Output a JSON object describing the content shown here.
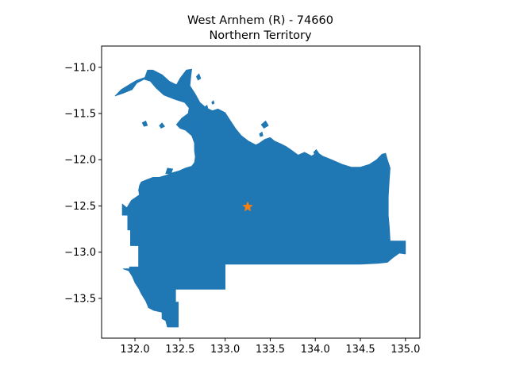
{
  "title_line1": "West Arnhem (R) - 74660",
  "title_line2": "Northern Territory",
  "chart_data": {
    "type": "map",
    "region_name": "West Arnhem (R)",
    "region_code": "74660",
    "state": "Northern Territory",
    "fill_color": "#1f77b4",
    "marker": {
      "shape": "star",
      "color": "#ff7f0e",
      "x": 133.25,
      "y": -12.51
    },
    "xlim": [
      131.63,
      135.16
    ],
    "ylim": [
      -13.93,
      -10.77
    ],
    "xticks": [
      132.0,
      132.5,
      133.0,
      133.5,
      134.0,
      134.5,
      135.0
    ],
    "xtick_labels": [
      "132.0",
      "132.5",
      "133.0",
      "133.5",
      "134.0",
      "134.5",
      "135.0"
    ],
    "yticks": [
      -11.0,
      -11.5,
      -12.0,
      -12.5,
      -13.0,
      -13.5
    ],
    "ytick_labels": [
      "−11.0",
      "−11.5",
      "−12.0",
      "−12.5",
      "−13.0",
      "−13.5"
    ],
    "grid": false,
    "outline": [
      [
        131.86,
        -12.48
      ],
      [
        131.91,
        -12.52
      ],
      [
        131.96,
        -12.44
      ],
      [
        132.05,
        -12.38
      ],
      [
        132.04,
        -12.33
      ],
      [
        132.05,
        -12.28
      ],
      [
        132.07,
        -12.24
      ],
      [
        132.12,
        -12.22
      ],
      [
        132.2,
        -12.19
      ],
      [
        132.27,
        -12.19
      ],
      [
        132.34,
        -12.17
      ],
      [
        132.42,
        -12.14
      ],
      [
        132.49,
        -12.12
      ],
      [
        132.56,
        -12.09
      ],
      [
        132.63,
        -12.07
      ],
      [
        132.66,
        -12.03
      ],
      [
        132.67,
        -11.97
      ],
      [
        132.66,
        -11.9
      ],
      [
        132.66,
        -11.82
      ],
      [
        132.63,
        -11.74
      ],
      [
        132.56,
        -11.68
      ],
      [
        132.5,
        -11.66
      ],
      [
        132.46,
        -11.62
      ],
      [
        132.52,
        -11.55
      ],
      [
        132.59,
        -11.5
      ],
      [
        132.6,
        -11.44
      ],
      [
        132.55,
        -11.38
      ],
      [
        132.45,
        -11.35
      ],
      [
        132.32,
        -11.3
      ],
      [
        132.23,
        -11.22
      ],
      [
        132.17,
        -11.15
      ],
      [
        132.1,
        -11.13
      ],
      [
        132.02,
        -11.17
      ],
      [
        131.97,
        -11.24
      ],
      [
        131.87,
        -11.28
      ],
      [
        131.78,
        -11.31
      ],
      [
        131.85,
        -11.24
      ],
      [
        131.95,
        -11.18
      ],
      [
        132.02,
        -11.14
      ],
      [
        132.11,
        -11.11
      ],
      [
        132.14,
        -11.03
      ],
      [
        132.2,
        -11.03
      ],
      [
        132.3,
        -11.08
      ],
      [
        132.38,
        -11.15
      ],
      [
        132.46,
        -11.19
      ],
      [
        132.5,
        -11.12
      ],
      [
        132.57,
        -11.03
      ],
      [
        132.63,
        -11.02
      ],
      [
        132.62,
        -11.09
      ],
      [
        132.61,
        -11.2
      ],
      [
        132.67,
        -11.29
      ],
      [
        132.72,
        -11.38
      ],
      [
        132.79,
        -11.44
      ],
      [
        132.86,
        -11.47
      ],
      [
        132.92,
        -11.45
      ],
      [
        133.0,
        -11.49
      ],
      [
        133.06,
        -11.58
      ],
      [
        133.12,
        -11.67
      ],
      [
        133.18,
        -11.74
      ],
      [
        133.26,
        -11.8
      ],
      [
        133.34,
        -11.84
      ],
      [
        133.38,
        -11.82
      ],
      [
        133.44,
        -11.78
      ],
      [
        133.5,
        -11.76
      ],
      [
        133.55,
        -11.8
      ],
      [
        133.62,
        -11.83
      ],
      [
        133.68,
        -11.86
      ],
      [
        133.74,
        -11.9
      ],
      [
        133.81,
        -11.95
      ],
      [
        133.88,
        -11.92
      ],
      [
        133.96,
        -11.96
      ],
      [
        134.02,
        -11.92
      ],
      [
        134.08,
        -11.96
      ],
      [
        134.18,
        -12.0
      ],
      [
        134.3,
        -12.05
      ],
      [
        134.4,
        -12.08
      ],
      [
        134.5,
        -12.08
      ],
      [
        134.6,
        -12.05
      ],
      [
        134.68,
        -12.0
      ],
      [
        134.74,
        -11.94
      ],
      [
        134.78,
        -11.93
      ],
      [
        134.8,
        -12.0
      ],
      [
        134.83,
        -12.09
      ],
      [
        134.82,
        -12.22
      ],
      [
        134.81,
        -12.4
      ],
      [
        134.81,
        -12.6
      ],
      [
        134.82,
        -12.72
      ],
      [
        134.83,
        -12.88
      ],
      [
        135.0,
        -12.88
      ],
      [
        135.0,
        -13.02
      ],
      [
        134.93,
        -13.01
      ],
      [
        134.86,
        -13.06
      ],
      [
        134.8,
        -13.11
      ],
      [
        134.7,
        -13.12
      ],
      [
        134.5,
        -13.13
      ],
      [
        134.2,
        -13.13
      ],
      [
        133.8,
        -13.13
      ],
      [
        133.5,
        -13.13
      ],
      [
        133.0,
        -13.13
      ],
      [
        133.0,
        -13.4
      ],
      [
        132.45,
        -13.4
      ],
      [
        132.45,
        -13.54
      ],
      [
        132.48,
        -13.54
      ],
      [
        132.48,
        -13.81
      ],
      [
        132.36,
        -13.81
      ],
      [
        132.34,
        -13.74
      ],
      [
        132.3,
        -13.72
      ],
      [
        132.3,
        -13.65
      ],
      [
        132.21,
        -13.63
      ],
      [
        132.15,
        -13.6
      ],
      [
        132.12,
        -13.53
      ],
      [
        132.07,
        -13.45
      ],
      [
        132.04,
        -13.39
      ],
      [
        132.0,
        -13.33
      ],
      [
        131.97,
        -13.26
      ],
      [
        131.93,
        -13.2
      ],
      [
        131.87,
        -13.18
      ],
      [
        131.94,
        -13.18
      ],
      [
        131.94,
        -13.16
      ],
      [
        132.04,
        -13.16
      ],
      [
        132.04,
        -12.93
      ],
      [
        131.95,
        -12.93
      ],
      [
        131.95,
        -12.76
      ],
      [
        131.92,
        -12.76
      ],
      [
        131.92,
        -12.6
      ],
      [
        131.86,
        -12.6
      ]
    ],
    "islands": [
      [
        [
          132.34,
          -12.15
        ],
        [
          132.36,
          -12.09
        ],
        [
          132.42,
          -12.1
        ],
        [
          132.4,
          -12.15
        ]
      ],
      [
        [
          132.7,
          -11.68
        ],
        [
          132.73,
          -11.62
        ],
        [
          132.76,
          -11.66
        ],
        [
          132.73,
          -11.72
        ]
      ],
      [
        [
          133.4,
          -11.62
        ],
        [
          133.45,
          -11.58
        ],
        [
          133.48,
          -11.63
        ],
        [
          133.43,
          -11.66
        ]
      ],
      [
        [
          133.38,
          -11.72
        ],
        [
          133.41,
          -11.7
        ],
        [
          133.42,
          -11.74
        ],
        [
          133.39,
          -11.75
        ]
      ],
      [
        [
          132.68,
          -11.1
        ],
        [
          132.71,
          -11.07
        ],
        [
          132.73,
          -11.12
        ],
        [
          132.7,
          -11.14
        ]
      ],
      [
        [
          132.08,
          -11.6
        ],
        [
          132.12,
          -11.58
        ],
        [
          132.14,
          -11.63
        ],
        [
          132.1,
          -11.64
        ]
      ],
      [
        [
          132.27,
          -11.63
        ],
        [
          132.3,
          -11.6
        ],
        [
          132.33,
          -11.64
        ],
        [
          132.29,
          -11.66
        ]
      ],
      [
        [
          132.85,
          -11.38
        ],
        [
          132.87,
          -11.36
        ],
        [
          132.88,
          -11.39
        ],
        [
          132.86,
          -11.4
        ]
      ],
      [
        [
          133.98,
          -11.92
        ],
        [
          134.01,
          -11.89
        ],
        [
          134.04,
          -11.93
        ],
        [
          134.0,
          -11.95
        ]
      ],
      [
        [
          132.77,
          -11.43
        ],
        [
          132.8,
          -11.41
        ],
        [
          132.81,
          -11.45
        ],
        [
          132.78,
          -11.46
        ]
      ]
    ]
  }
}
